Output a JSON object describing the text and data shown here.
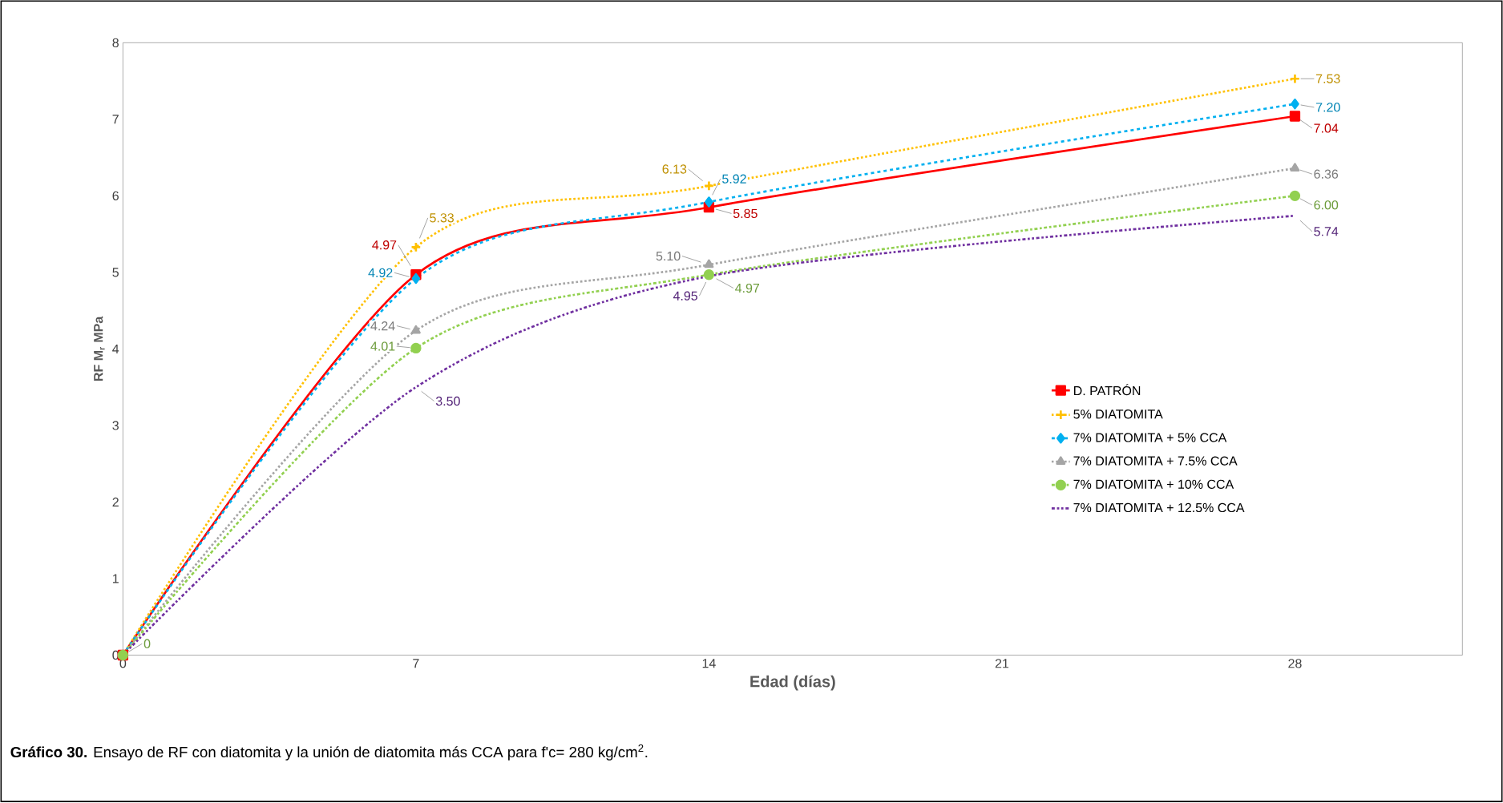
{
  "chart_data": {
    "type": "line",
    "xlabel": "Edad (días)",
    "ylabel": "RF M$_{r}$ MPa",
    "x": [
      0,
      7,
      14,
      28
    ],
    "xlim": [
      0,
      32
    ],
    "xticks": [
      0,
      7,
      14,
      21,
      28
    ],
    "ylim": [
      0,
      8
    ],
    "yticks": [
      0,
      1,
      2,
      3,
      4,
      5,
      6,
      7,
      8
    ],
    "grid": false,
    "legend": "bottom right",
    "series": [
      {
        "name": "D. PATRÓN",
        "color": "#ff0000",
        "marker": "square",
        "line_style": "solid",
        "values": [
          0,
          4.97,
          5.85,
          7.04
        ],
        "value_labels": [
          null,
          "4.97",
          "5.85",
          "7.04"
        ]
      },
      {
        "name": "5% DIATOMITA",
        "color": "#ffc000",
        "marker": "cross",
        "line_style": "dotted",
        "values": [
          0,
          5.33,
          6.13,
          7.53
        ],
        "value_labels": [
          null,
          "5.33",
          "6.13",
          "7.53"
        ]
      },
      {
        "name": "7% DIATOMITA + 5% CCA",
        "color": "#00b0f0",
        "marker": "diamond",
        "line_style": "dashed",
        "values": [
          0,
          4.92,
          5.92,
          7.2
        ],
        "value_labels": [
          null,
          "4.92",
          "5.92",
          "7.20"
        ]
      },
      {
        "name": "7% DIATOMITA + 7.5% CCA",
        "color": "#a5a5a5",
        "marker": "triangle",
        "line_style": "dotted",
        "values": [
          0,
          4.24,
          5.1,
          6.36
        ],
        "value_labels": [
          null,
          "4.24",
          "5.10",
          "6.36"
        ]
      },
      {
        "name": "7% DIATOMITA + 10% CCA",
        "color": "#92d050",
        "marker": "circle",
        "line_style": "dashdot",
        "values": [
          0,
          4.01,
          4.97,
          6.0
        ],
        "value_labels": [
          "0",
          "4.01",
          "4.97",
          "6.00"
        ]
      },
      {
        "name": "7% DIATOMITA + 12.5% CCA",
        "color": "#7030a0",
        "marker": "none",
        "line_style": "dashdotdot",
        "values": [
          0,
          3.5,
          4.95,
          5.74
        ],
        "value_labels": [
          null,
          "3.50",
          "4.95",
          "5.74"
        ]
      }
    ],
    "annotations": [
      "**Gráfico 30.** Ensayo de RF con diatomita y la unión de diatomita más CCA para f'c= 280 kg/cm$^{2}$."
    ]
  }
}
